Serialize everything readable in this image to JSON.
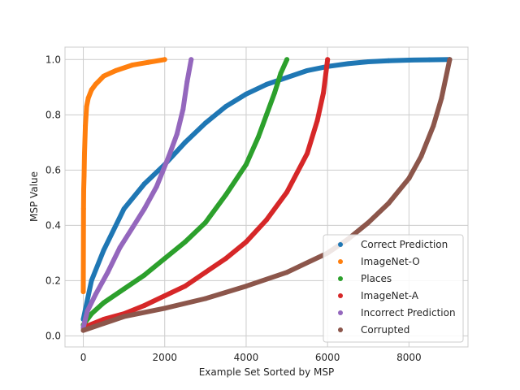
{
  "chart_data": {
    "type": "scatter",
    "xlabel": "Example Set Sorted by MSP",
    "ylabel": "MSP Value",
    "xlim": [
      -450,
      9450
    ],
    "ylim": [
      -0.04,
      1.045
    ],
    "xticks": [
      0,
      2000,
      4000,
      6000,
      8000
    ],
    "xtick_labels": [
      "0",
      "2000",
      "4000",
      "6000",
      "8000"
    ],
    "yticks": [
      0.0,
      0.2,
      0.4,
      0.6,
      0.8,
      1.0
    ],
    "ytick_labels": [
      "0.0",
      "0.2",
      "0.4",
      "0.6",
      "0.8",
      "1.0"
    ],
    "grid": true,
    "legend_position": "lower-right",
    "series": [
      {
        "name": "Correct Prediction",
        "color": "#1f77b4",
        "points": [
          [
            0,
            0.06
          ],
          [
            200,
            0.2
          ],
          [
            500,
            0.31
          ],
          [
            1000,
            0.46
          ],
          [
            1500,
            0.55
          ],
          [
            2000,
            0.62
          ],
          [
            2500,
            0.7
          ],
          [
            3000,
            0.77
          ],
          [
            3500,
            0.83
          ],
          [
            4000,
            0.875
          ],
          [
            4500,
            0.91
          ],
          [
            5000,
            0.935
          ],
          [
            5500,
            0.96
          ],
          [
            6000,
            0.975
          ],
          [
            6500,
            0.985
          ],
          [
            7000,
            0.992
          ],
          [
            7500,
            0.996
          ],
          [
            8000,
            0.998
          ],
          [
            8500,
            0.999
          ],
          [
            9000,
            1.0
          ]
        ]
      },
      {
        "name": "ImageNet-O",
        "color": "#ff7f0e",
        "points": [
          [
            0,
            0.16
          ],
          [
            5,
            0.46
          ],
          [
            10,
            0.53
          ],
          [
            20,
            0.58
          ],
          [
            30,
            0.66
          ],
          [
            50,
            0.76
          ],
          [
            80,
            0.83
          ],
          [
            120,
            0.86
          ],
          [
            200,
            0.89
          ],
          [
            300,
            0.91
          ],
          [
            500,
            0.94
          ],
          [
            800,
            0.96
          ],
          [
            1200,
            0.98
          ],
          [
            1600,
            0.99
          ],
          [
            2000,
            1.0
          ]
        ]
      },
      {
        "name": "Places",
        "color": "#2ca02c",
        "points": [
          [
            0,
            0.04
          ],
          [
            200,
            0.08
          ],
          [
            500,
            0.12
          ],
          [
            1000,
            0.17
          ],
          [
            1500,
            0.22
          ],
          [
            2000,
            0.28
          ],
          [
            2500,
            0.34
          ],
          [
            3000,
            0.41
          ],
          [
            3500,
            0.51
          ],
          [
            4000,
            0.62
          ],
          [
            4300,
            0.72
          ],
          [
            4500,
            0.8
          ],
          [
            4700,
            0.88
          ],
          [
            4850,
            0.95
          ],
          [
            5000,
            1.0
          ]
        ]
      },
      {
        "name": "ImageNet-A",
        "color": "#d62728",
        "points": [
          [
            0,
            0.03
          ],
          [
            500,
            0.06
          ],
          [
            1000,
            0.08
          ],
          [
            1500,
            0.11
          ],
          [
            2000,
            0.145
          ],
          [
            2500,
            0.18
          ],
          [
            3000,
            0.23
          ],
          [
            3500,
            0.28
          ],
          [
            4000,
            0.34
          ],
          [
            4500,
            0.42
          ],
          [
            5000,
            0.52
          ],
          [
            5500,
            0.66
          ],
          [
            5750,
            0.78
          ],
          [
            5900,
            0.88
          ],
          [
            6000,
            1.0
          ]
        ]
      },
      {
        "name": "Incorrect Prediction",
        "color": "#9467bd",
        "points": [
          [
            0,
            0.03
          ],
          [
            100,
            0.09
          ],
          [
            300,
            0.15
          ],
          [
            600,
            0.23
          ],
          [
            900,
            0.32
          ],
          [
            1200,
            0.39
          ],
          [
            1500,
            0.46
          ],
          [
            1800,
            0.54
          ],
          [
            2100,
            0.65
          ],
          [
            2300,
            0.73
          ],
          [
            2450,
            0.82
          ],
          [
            2550,
            0.92
          ],
          [
            2650,
            1.0
          ]
        ]
      },
      {
        "name": "Corrupted",
        "color": "#8c564b",
        "points": [
          [
            0,
            0.02
          ],
          [
            1000,
            0.07
          ],
          [
            2000,
            0.1
          ],
          [
            3000,
            0.135
          ],
          [
            4000,
            0.18
          ],
          [
            5000,
            0.23
          ],
          [
            6000,
            0.3
          ],
          [
            6500,
            0.35
          ],
          [
            7000,
            0.41
          ],
          [
            7500,
            0.48
          ],
          [
            8000,
            0.57
          ],
          [
            8300,
            0.65
          ],
          [
            8600,
            0.76
          ],
          [
            8800,
            0.86
          ],
          [
            9000,
            1.0
          ]
        ]
      }
    ]
  }
}
